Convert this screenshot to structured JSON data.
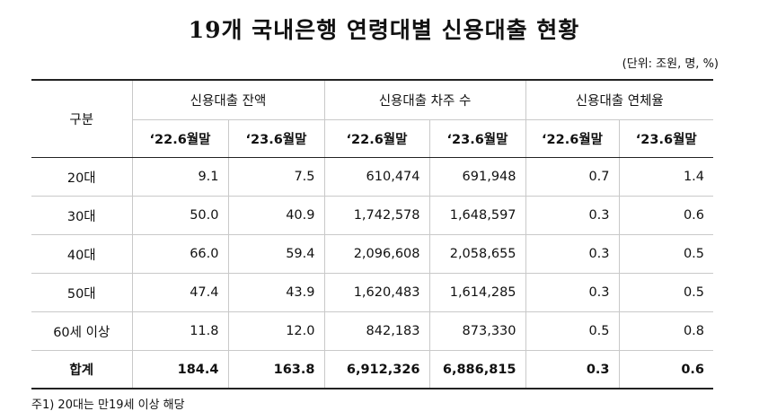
{
  "title": "19개 국내은행 연령대별 신용대출 현황",
  "unit": "(단위: 조원, 명, %)",
  "table": {
    "corner": "구분",
    "groups": [
      "신용대출 잔액",
      "신용대출 차주 수",
      "신용대출 연체율"
    ],
    "periods": [
      "‘22.6월말",
      "‘23.6월말",
      "‘22.6월말",
      "‘23.6월말",
      "‘22.6월말",
      "‘23.6월말"
    ],
    "rows": [
      {
        "label": "20대",
        "values": [
          "9.1",
          "7.5",
          "610,474",
          "691,948",
          "0.7",
          "1.4"
        ]
      },
      {
        "label": "30대",
        "values": [
          "50.0",
          "40.9",
          "1,742,578",
          "1,648,597",
          "0.3",
          "0.6"
        ]
      },
      {
        "label": "40대",
        "values": [
          "66.0",
          "59.4",
          "2,096,608",
          "2,058,655",
          "0.3",
          "0.5"
        ]
      },
      {
        "label": "50대",
        "values": [
          "47.4",
          "43.9",
          "1,620,483",
          "1,614,285",
          "0.3",
          "0.5"
        ]
      },
      {
        "label": "60세 이상",
        "values": [
          "11.8",
          "12.0",
          "842,183",
          "873,330",
          "0.5",
          "0.8"
        ]
      }
    ],
    "total": {
      "label": "합계",
      "values": [
        "184.4",
        "163.8",
        "6,912,326",
        "6,886,815",
        "0.3",
        "0.6"
      ]
    }
  },
  "note": "주1) 20대는 만19세 이상 해당"
}
